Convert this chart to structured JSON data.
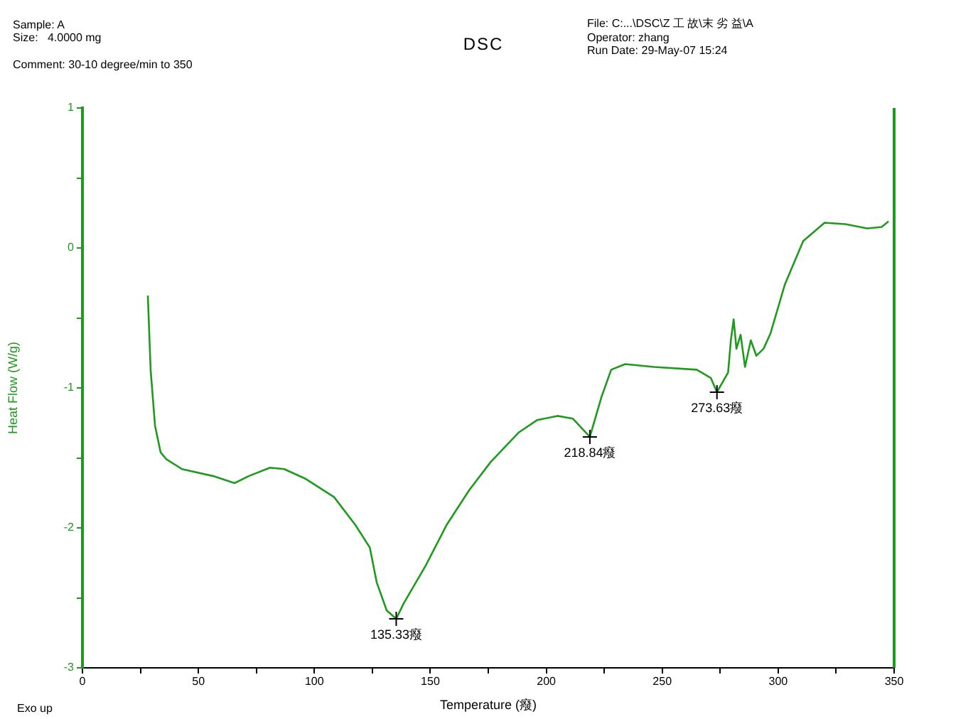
{
  "chart_data": {
    "type": "line",
    "title": "DSC",
    "xlabel": "Temperature (癈)",
    "ylabel": "Heat Flow (W/g)",
    "xlim": [
      0,
      350
    ],
    "ylim": [
      -3,
      1
    ],
    "xticks": [
      0,
      {
        "value": 25,
        "label": null
      },
      50,
      {
        "value": 75,
        "label": null
      },
      100,
      {
        "value": 125,
        "label": null
      },
      150,
      {
        "value": 175,
        "label": null
      },
      200,
      {
        "value": 225,
        "label": null
      },
      250,
      {
        "value": 275,
        "label": null
      },
      300,
      {
        "value": 325,
        "label": null
      },
      350
    ],
    "yticks": [
      -3,
      {
        "value": -2.5,
        "label": null
      },
      -2,
      {
        "value": -1.5,
        "label": null
      },
      -1,
      {
        "value": -0.5,
        "label": null
      },
      0,
      {
        "value": 0.5,
        "label": null
      },
      1
    ],
    "grid": false,
    "legend": false,
    "marker": "none",
    "line_style": "solid",
    "series": [
      {
        "color": "#1f9a1f",
        "x": [
          28.2,
          29.4,
          31.3,
          33.7,
          36.2,
          42.9,
          56.4,
          65.6,
          71.7,
          80.9,
          87,
          96.3,
          108.5,
          117.7,
          123.9,
          126.9,
          131.2,
          135.3,
          138.5,
          148,
          157,
          166.8,
          176,
          188,
          196,
          204.8,
          211.5,
          218.8,
          223.7,
          228,
          234,
          246.5,
          264.9,
          271,
          273.6,
          278.4,
          279.6,
          280.8,
          282,
          283.8,
          285.7,
          288.2,
          290.6,
          293.7,
          296.7,
          302.9,
          310.8,
          320,
          329,
          338.4,
          344.6,
          347.6
        ],
        "values": [
          -0.34,
          -0.87,
          -1.27,
          -1.46,
          -1.51,
          -1.58,
          -1.63,
          -1.68,
          -1.63,
          -1.57,
          -1.58,
          -1.65,
          -1.78,
          -1.98,
          -2.14,
          -2.39,
          -2.59,
          -2.65,
          -2.54,
          -2.27,
          -1.98,
          -1.73,
          -1.53,
          -1.32,
          -1.23,
          -1.2,
          -1.22,
          -1.35,
          -1.07,
          -0.87,
          -0.83,
          -0.85,
          -0.87,
          -0.93,
          -1.03,
          -0.89,
          -0.66,
          -0.51,
          -0.72,
          -0.62,
          -0.85,
          -0.66,
          -0.77,
          -0.72,
          -0.61,
          -0.26,
          0.05,
          0.18,
          0.17,
          0.14,
          0.15,
          0.19
        ]
      }
    ],
    "annotations": [
      "Sample: A",
      "Size:   4.0000 mg",
      "Comment: 30-10 degree/min to 350",
      "File: C:...\\DSC\\Z 工 故\\末 劣 益\\A",
      "Operator: zhang",
      "Run Date: 29-May-07 15:24",
      "Exo up",
      {
        "text": "135.33癈",
        "x": 135.3,
        "y": -2.65
      },
      {
        "text": "218.84癈",
        "x": 218.8,
        "y": -1.35
      },
      {
        "text": "273.63癈",
        "x": 273.6,
        "y": -1.03
      }
    ]
  }
}
